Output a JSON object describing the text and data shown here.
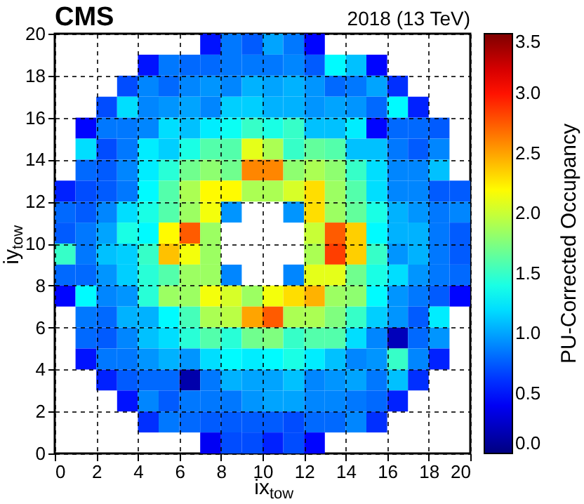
{
  "chart_data": {
    "type": "heatmap",
    "annotations": [
      "CMS",
      "2018 (13 TeV)"
    ],
    "xlabel": "ix$_{tow}$",
    "ylabel": "iy$_{tow}$",
    "clabel": "PU-Corrected Occupancy",
    "xlim": [
      0,
      20
    ],
    "ylim": [
      0,
      20
    ],
    "xticks": [
      0,
      2,
      4,
      6,
      8,
      10,
      12,
      14,
      16,
      18,
      20
    ],
    "yticks": [
      0,
      2,
      4,
      6,
      8,
      10,
      12,
      14,
      16,
      18,
      20
    ],
    "clim": [
      0,
      3.5
    ],
    "cticks": [
      {
        "value": 0,
        "label": "0.0"
      },
      {
        "value": 0.5,
        "label": "0.5"
      },
      {
        "value": 1,
        "label": "1.0"
      },
      {
        "value": 1.5,
        "label": "1.5"
      },
      {
        "value": 2,
        "label": "2.0"
      },
      {
        "value": 2.5,
        "label": "2.5"
      },
      {
        "value": 3,
        "label": "3.0"
      },
      {
        "value": 3.5,
        "label": "3.5"
      }
    ],
    "grid": true,
    "cells": [
      [
        null,
        null,
        null,
        null,
        null,
        null,
        null,
        0.5,
        0.85,
        0.75,
        1.0,
        0.85,
        0.45,
        null,
        null,
        null,
        null,
        null,
        null,
        null
      ],
      [
        null,
        null,
        null,
        null,
        0.5,
        0.85,
        0.8,
        0.8,
        0.85,
        0.85,
        0.85,
        0.9,
        0.75,
        1.3,
        1.1,
        0.45,
        null,
        null,
        null,
        null
      ],
      [
        null,
        null,
        null,
        0.7,
        0.9,
        0.8,
        0.9,
        0.95,
        0.9,
        1.05,
        1.0,
        1.05,
        0.95,
        0.8,
        0.85,
        1.0,
        0.6,
        null,
        null,
        null
      ],
      [
        null,
        null,
        0.7,
        1.2,
        0.9,
        0.95,
        1.0,
        0.9,
        1.15,
        1.15,
        1.05,
        1.05,
        0.95,
        1.0,
        0.95,
        0.8,
        1.3,
        0.55,
        null,
        null
      ],
      [
        null,
        0.45,
        0.85,
        0.85,
        0.9,
        1.2,
        1.1,
        1.25,
        1.35,
        1.5,
        1.4,
        1.5,
        1.1,
        1.1,
        1.25,
        0.45,
        0.8,
        0.8,
        0.75,
        null
      ],
      [
        null,
        1.2,
        0.7,
        0.85,
        1.25,
        1.15,
        1.4,
        1.6,
        1.6,
        2.1,
        1.9,
        1.5,
        1.65,
        1.6,
        1.1,
        1.1,
        0.85,
        0.75,
        0.9,
        null
      ],
      [
        null,
        0.8,
        0.75,
        0.9,
        1.25,
        1.45,
        1.7,
        1.8,
        1.7,
        2.6,
        2.6,
        1.8,
        1.9,
        1.8,
        1.5,
        1.2,
        0.9,
        0.9,
        1.1,
        null
      ],
      [
        0.55,
        0.7,
        0.75,
        0.85,
        1.3,
        1.6,
        1.9,
        2.2,
        2.2,
        1.9,
        1.9,
        2.05,
        2.3,
        1.85,
        1.6,
        1.2,
        0.9,
        0.9,
        0.75,
        0.75
      ],
      [
        0.8,
        0.75,
        0.9,
        1.2,
        1.4,
        1.6,
        1.85,
        2.15,
        0.95,
        null,
        null,
        0.95,
        2.3,
        1.85,
        1.65,
        1.4,
        1.05,
        0.95,
        0.85,
        0.9
      ],
      [
        0.75,
        0.85,
        1.0,
        1.4,
        1.3,
        2.2,
        2.75,
        1.85,
        null,
        null,
        null,
        null,
        2.0,
        2.75,
        2.35,
        1.3,
        1.05,
        1.05,
        0.85,
        0.75
      ],
      [
        1.5,
        0.85,
        1.1,
        1.15,
        1.5,
        2.4,
        2.15,
        1.85,
        null,
        null,
        null,
        null,
        1.9,
        2.85,
        2.35,
        1.5,
        0.95,
        1.05,
        0.85,
        0.75
      ],
      [
        0.8,
        0.8,
        0.95,
        1.15,
        1.45,
        1.6,
        1.85,
        1.85,
        0.9,
        null,
        null,
        0.9,
        2.1,
        2.1,
        1.7,
        1.4,
        1.2,
        0.95,
        0.85,
        0.8
      ],
      [
        0.45,
        1.3,
        0.9,
        0.95,
        1.45,
        1.85,
        1.85,
        2.15,
        2.05,
        1.85,
        2.15,
        2.3,
        2.45,
        1.85,
        1.8,
        1.3,
        0.95,
        0.85,
        0.75,
        0.45
      ],
      [
        null,
        0.85,
        0.8,
        1.05,
        1.05,
        1.3,
        1.55,
        1.9,
        1.95,
        2.5,
        2.75,
        1.9,
        1.9,
        1.75,
        1.5,
        1.15,
        0.95,
        0.75,
        1.25,
        null
      ],
      [
        null,
        0.8,
        0.75,
        0.9,
        1.1,
        1.2,
        1.45,
        1.6,
        1.45,
        1.7,
        1.75,
        1.5,
        1.6,
        1.6,
        1.2,
        0.9,
        0.2,
        0.8,
        0.95,
        null
      ],
      [
        null,
        0.5,
        0.85,
        0.85,
        0.95,
        1.05,
        0.95,
        1.2,
        1.3,
        1.25,
        1.3,
        1.4,
        1.25,
        1.1,
        0.9,
        0.95,
        1.5,
        0.9,
        0.55,
        null
      ],
      [
        null,
        null,
        0.55,
        0.75,
        0.8,
        0.8,
        0.15,
        0.85,
        1.05,
        1.0,
        1.0,
        1.1,
        0.9,
        0.95,
        1.0,
        0.85,
        1.1,
        0.6,
        null,
        null
      ],
      [
        null,
        null,
        null,
        0.5,
        0.9,
        0.75,
        0.85,
        0.85,
        0.85,
        0.95,
        1.0,
        1.0,
        0.9,
        0.9,
        0.85,
        0.8,
        0.55,
        null,
        null,
        null
      ],
      [
        null,
        null,
        null,
        null,
        0.6,
        0.85,
        0.8,
        0.75,
        0.75,
        0.75,
        0.75,
        0.7,
        0.8,
        0.8,
        0.9,
        0.6,
        null,
        null,
        null,
        null
      ],
      [
        null,
        null,
        null,
        null,
        null,
        null,
        null,
        0.4,
        0.7,
        0.7,
        0.55,
        0.7,
        0.45,
        null,
        null,
        null,
        null,
        null,
        null,
        null
      ]
    ]
  }
}
